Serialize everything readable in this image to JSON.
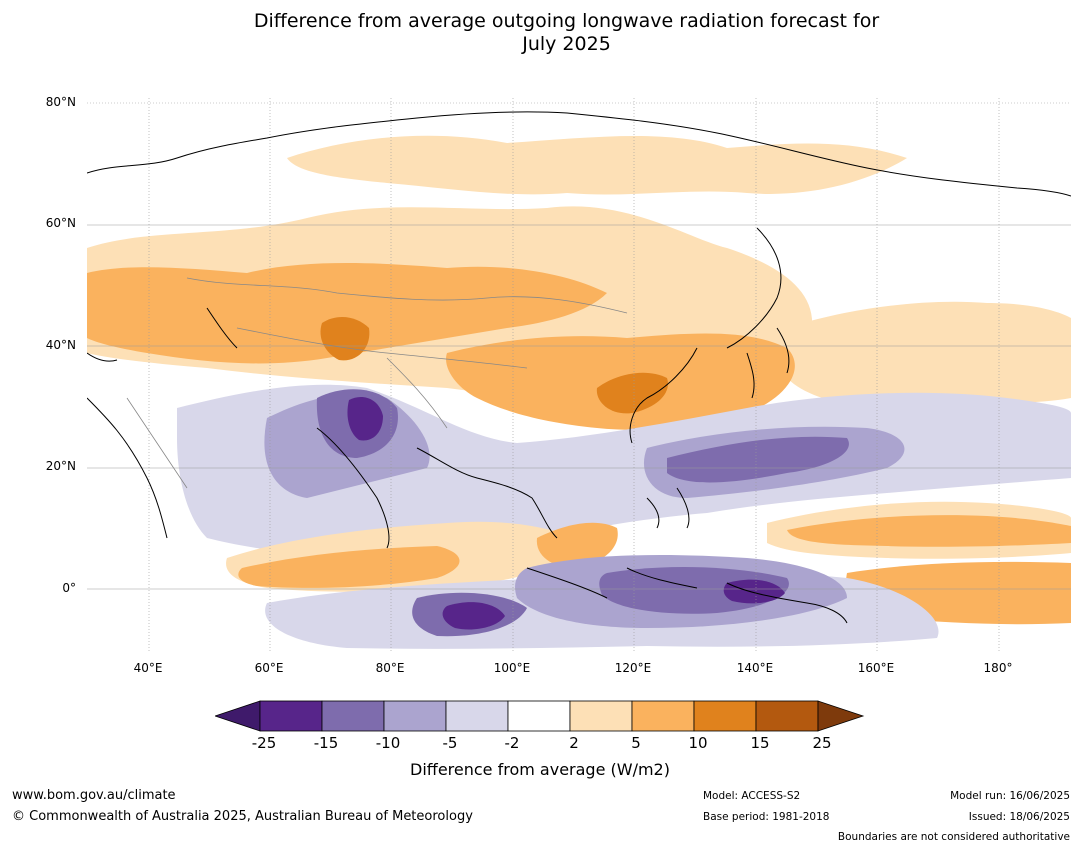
{
  "title": {
    "line1": "Difference from average outgoing longwave radiation forecast for",
    "line2": "July 2025"
  },
  "map": {
    "lat_labels": [
      "80°N",
      "60°N",
      "40°N",
      "20°N",
      "0°"
    ],
    "lon_labels": [
      "40°E",
      "60°E",
      "80°E",
      "100°E",
      "120°E",
      "140°E",
      "160°E",
      "180°"
    ],
    "extent": {
      "lon": [
        30,
        192
      ],
      "lat": [
        -10,
        80
      ]
    }
  },
  "colorbar": {
    "labels": [
      "-25",
      "-15",
      "-10",
      "-5",
      "-2",
      "2",
      "5",
      "10",
      "15",
      "25"
    ],
    "colors": [
      "#3f1a6b",
      "#57258a",
      "#7e6cad",
      "#aba4cf",
      "#d8d7ea",
      "#ffffff",
      "#fde0b6",
      "#fab25e",
      "#e0821d",
      "#b3590f",
      "#7e3a0c"
    ],
    "title": "Difference from average (W/m2)"
  },
  "footer": {
    "website": "www.bom.gov.au/climate",
    "copyright": "© Commonwealth of Australia 2025, Australian Bureau of Meteorology",
    "model": "Model: ACCESS-S2",
    "base_period": "Base period: 1981-2018",
    "model_run": "Model run: 16/06/2025",
    "issued": "Issued: 18/06/2025",
    "boundaries": "Boundaries are not considered authoritative"
  }
}
